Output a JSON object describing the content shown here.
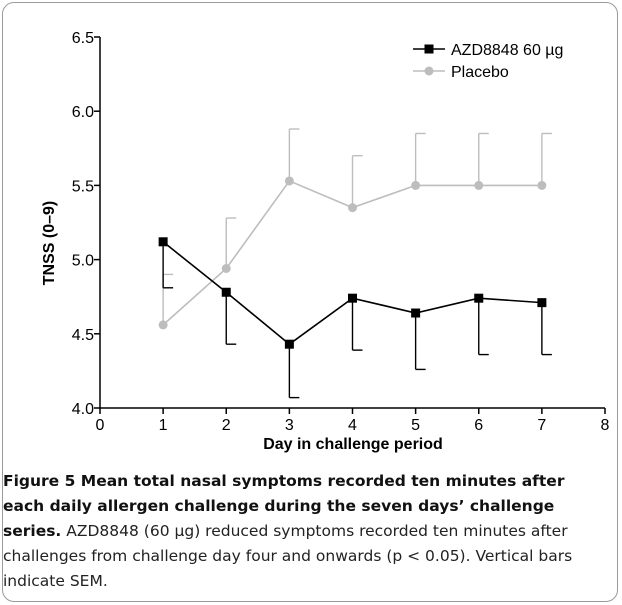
{
  "chart_data": {
    "type": "line",
    "xlabel": "Day in challenge period",
    "ylabel": "TNSS (0–9)",
    "xlim": [
      0,
      8
    ],
    "ylim": [
      4.0,
      6.5
    ],
    "x_ticks": [
      "0",
      "1",
      "2",
      "3",
      "4",
      "5",
      "6",
      "7",
      "8"
    ],
    "y_ticks": [
      "4.0",
      "4.5",
      "5.0",
      "5.5",
      "6.0",
      "6.5"
    ],
    "grid": false,
    "legend_position": "top-right",
    "error_bars": "SEM",
    "series": [
      {
        "name": "AZD8848 60 µg",
        "color": "#000000",
        "marker": "square",
        "x": [
          1,
          2,
          3,
          4,
          5,
          6,
          7
        ],
        "y": [
          5.12,
          4.78,
          4.43,
          4.74,
          4.64,
          4.74,
          4.71
        ],
        "error": [
          0.31,
          0.35,
          0.36,
          0.35,
          0.38,
          0.38,
          0.35
        ],
        "error_direction": "down"
      },
      {
        "name": "Placebo",
        "color": "#bdbdbd",
        "marker": "circle",
        "x": [
          1,
          2,
          3,
          4,
          5,
          6,
          7
        ],
        "y": [
          4.56,
          4.94,
          5.53,
          5.35,
          5.5,
          5.5,
          5.5
        ],
        "error": [
          0.34,
          0.34,
          0.35,
          0.35,
          0.35,
          0.35,
          0.35
        ],
        "error_direction": "up"
      }
    ]
  },
  "caption": {
    "lead": "Figure 5 Mean total nasal symptoms recorded ten minutes after each daily allergen challenge during the seven days’ challenge series.",
    "body": "AZD8848 (60 µg) reduced symptoms recorded ten minutes after challenges from challenge day four and onwards (p < 0.05). Vertical bars indicate SEM."
  }
}
